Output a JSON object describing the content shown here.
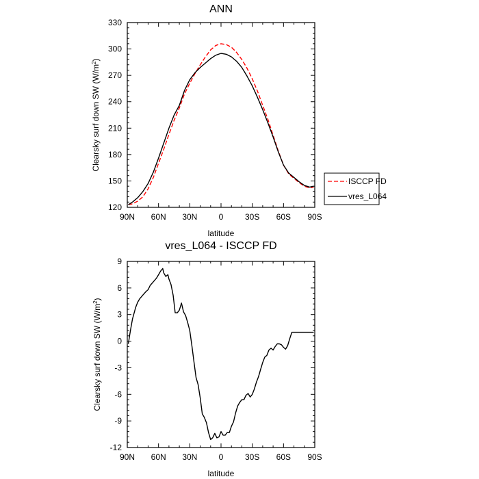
{
  "chart_data": [
    {
      "type": "line",
      "title": "ANN",
      "xlabel": "latitude",
      "ylabel": "Clearsky surf down SW (W/m",
      "ylabel_sup": "2",
      "ylabel_close": ")",
      "xlim": [
        90,
        -90
      ],
      "ylim": [
        120,
        330
      ],
      "xticks": [
        90,
        60,
        30,
        0,
        -30,
        -60,
        -90
      ],
      "xtick_labels": [
        "90N",
        "60N",
        "30N",
        "0",
        "30S",
        "60S",
        "90S"
      ],
      "yticks": [
        120,
        150,
        180,
        210,
        240,
        270,
        300,
        330
      ],
      "ytick_labels": [
        "120",
        "150",
        "180",
        "210",
        "240",
        "270",
        "300",
        "330"
      ],
      "legend": [
        "ISCCP FD",
        "vres_L064"
      ],
      "legend_position": "right",
      "series": [
        {
          "name": "ISCCP FD",
          "color": "#ff0000",
          "dash": true,
          "x": [
            89,
            85,
            80,
            75,
            70,
            65,
            60,
            55,
            50,
            45,
            40,
            35,
            30,
            25,
            20,
            15,
            10,
            5,
            0,
            -5,
            -10,
            -15,
            -20,
            -25,
            -30,
            -35,
            -40,
            -45,
            -50,
            -55,
            -60,
            -65,
            -70,
            -75,
            -80,
            -85,
            -89
          ],
          "y": [
            123,
            124,
            127,
            132,
            141,
            154,
            170,
            186,
            203,
            219,
            233,
            249,
            261,
            272,
            282,
            291,
            299,
            304,
            306,
            305,
            302,
            296,
            288,
            278,
            266,
            252,
            236,
            220,
            202,
            184,
            168,
            158,
            153,
            148,
            144,
            142,
            143
          ]
        },
        {
          "name": "vres_L064",
          "color": "#000000",
          "dash": false,
          "x": [
            89,
            85,
            80,
            75,
            70,
            65,
            60,
            55,
            50,
            45,
            40,
            35,
            30,
            25,
            20,
            15,
            10,
            5,
            0,
            -5,
            -10,
            -15,
            -20,
            -25,
            -30,
            -35,
            -40,
            -45,
            -50,
            -55,
            -60,
            -65,
            -70,
            -75,
            -80,
            -85,
            -89
          ],
          "y": [
            123,
            126,
            131,
            138,
            147,
            160,
            176,
            193,
            210,
            225,
            236,
            253,
            265,
            273,
            279,
            284,
            289,
            293,
            295,
            294,
            291,
            286,
            279,
            269,
            258,
            245,
            231,
            216,
            200,
            183,
            168,
            159,
            154,
            149,
            145,
            143,
            144
          ]
        }
      ]
    },
    {
      "type": "line",
      "title": "vres_L064 - ISCCP FD",
      "xlabel": "latitude",
      "ylabel": "Clearsky surf down SW (W/m",
      "ylabel_sup": "2",
      "ylabel_close": ")",
      "xlim": [
        90,
        -90
      ],
      "ylim": [
        -12,
        9
      ],
      "xticks": [
        90,
        60,
        30,
        0,
        -30,
        -60,
        -90
      ],
      "xtick_labels": [
        "90N",
        "60N",
        "30N",
        "0",
        "30S",
        "60S",
        "90S"
      ],
      "yticks": [
        -12,
        -9,
        -6,
        -3,
        0,
        3,
        6,
        9
      ],
      "ytick_labels": [
        "-12",
        "-9",
        "-6",
        "-3",
        "0",
        "3",
        "6",
        "9"
      ],
      "series": [
        {
          "color": "#000000",
          "dash": false,
          "x": [
            89,
            87,
            85,
            82,
            80,
            78,
            75,
            72,
            70,
            68,
            65,
            62,
            60,
            58,
            56,
            55,
            53,
            51,
            50,
            48,
            46,
            44,
            42,
            40,
            38,
            36,
            34,
            32,
            30,
            28,
            26,
            24,
            22,
            20,
            18,
            16,
            14,
            12,
            10,
            8,
            6,
            4,
            2,
            0,
            -2,
            -4,
            -6,
            -8,
            -10,
            -12,
            -14,
            -16,
            -18,
            -20,
            -22,
            -24,
            -26,
            -28,
            -30,
            -32,
            -34,
            -36,
            -38,
            -40,
            -42,
            -44,
            -46,
            -48,
            -50,
            -52,
            -54,
            -56,
            -58,
            -60,
            -62,
            -64,
            -66,
            -68,
            -70,
            -72,
            -74,
            -76,
            -78,
            -80,
            -82,
            -84,
            -86,
            -88,
            -89
          ],
          "y": [
            -0.3,
            1.2,
            2.5,
            3.8,
            4.4,
            4.8,
            5.2,
            5.6,
            5.8,
            6.3,
            6.7,
            7.1,
            7.5,
            7.9,
            8.2,
            7.7,
            7.3,
            7.5,
            7.0,
            6.4,
            5.2,
            3.2,
            3.2,
            3.5,
            4.3,
            3.3,
            2.9,
            2.1,
            1.2,
            -0.5,
            -2.3,
            -4.1,
            -4.9,
            -6.4,
            -8.2,
            -8.6,
            -9.2,
            -10.3,
            -11.1,
            -10.9,
            -10.4,
            -10.9,
            -10.8,
            -10.2,
            -10.6,
            -10.6,
            -10.3,
            -10.3,
            -9.6,
            -9.1,
            -8.1,
            -7.3,
            -6.9,
            -6.6,
            -6.6,
            -6.1,
            -5.9,
            -6.3,
            -6.0,
            -5.4,
            -4.6,
            -4.0,
            -3.2,
            -2.4,
            -1.8,
            -1.6,
            -1.0,
            -0.8,
            -1.0,
            -0.6,
            -0.3,
            -0.3,
            -0.4,
            -0.7,
            -0.9,
            -0.5,
            0.3,
            1.0,
            1.0,
            1.0,
            1.0,
            1.0,
            1.0,
            1.0,
            1.0,
            1.0,
            1.0,
            1.0,
            1.0
          ]
        }
      ]
    }
  ]
}
